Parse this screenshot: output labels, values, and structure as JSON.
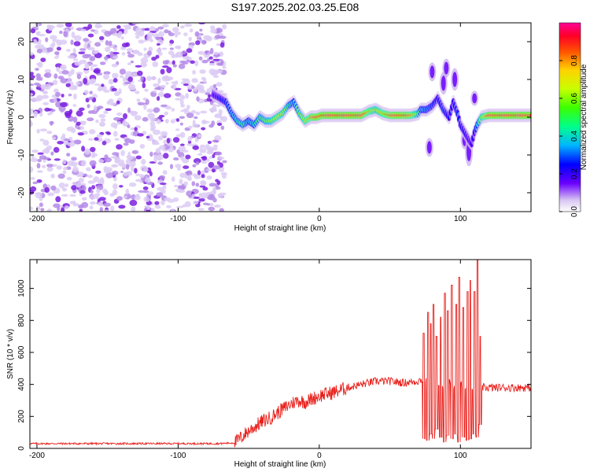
{
  "title": "S197.2025.202.03.25.E08",
  "chart_data": [
    {
      "type": "heatmap",
      "title": "",
      "xlabel": "Height of straight line (km)",
      "ylabel": "Frequency (Hz)",
      "xlim": [
        -205,
        150
      ],
      "ylim": [
        -25,
        25
      ],
      "xticks": [
        -200,
        -100,
        0,
        100
      ],
      "yticks": [
        -20,
        -10,
        0,
        10,
        20
      ],
      "noise_region_x": [
        -205,
        -67
      ],
      "ridge": {
        "x": [
          -75,
          -70,
          -66,
          -62,
          -58,
          -54,
          -50,
          -46,
          -42,
          -38,
          -34,
          -30,
          -26,
          -22,
          -18,
          -14,
          -10,
          -6,
          -2,
          2,
          10,
          20,
          30,
          35,
          40,
          45,
          50,
          55,
          60,
          65,
          70,
          72,
          76,
          80,
          84,
          88,
          92,
          95,
          98,
          100,
          103,
          106,
          108,
          110,
          112,
          115,
          120,
          130,
          140,
          150
        ],
        "y": [
          6,
          5,
          4,
          1,
          -1,
          -2,
          -1,
          -2,
          0,
          -1,
          -1,
          0,
          1,
          3,
          4,
          1,
          -1,
          0,
          0,
          0.5,
          0.5,
          0.5,
          0.5,
          1.5,
          2,
          1,
          0.5,
          0.5,
          0.5,
          0.5,
          1,
          2,
          2,
          3,
          5,
          2,
          0,
          4,
          1,
          -2,
          -4,
          -6,
          -7,
          -4,
          -2,
          0,
          0.5,
          0.5,
          0.5,
          0.5
        ],
        "amp": [
          0.25,
          0.3,
          0.35,
          0.45,
          0.5,
          0.55,
          0.45,
          0.5,
          0.55,
          0.6,
          0.65,
          0.75,
          0.7,
          0.55,
          0.45,
          0.6,
          0.75,
          0.85,
          0.95,
          0.95,
          0.97,
          0.97,
          0.95,
          0.8,
          0.7,
          0.8,
          0.9,
          0.95,
          0.95,
          0.85,
          0.6,
          0.45,
          0.4,
          0.35,
          0.3,
          0.35,
          0.3,
          0.3,
          0.35,
          0.3,
          0.3,
          0.25,
          0.25,
          0.3,
          0.45,
          0.7,
          0.95,
          0.97,
          0.97,
          0.97
        ]
      },
      "outlier_blobs": [
        {
          "x": 78,
          "y": -8,
          "h": 5
        },
        {
          "x": 80,
          "y": 12,
          "h": 5
        },
        {
          "x": 88,
          "y": 9,
          "h": 6
        },
        {
          "x": 90,
          "y": 13,
          "h": 5
        },
        {
          "x": 96,
          "y": 10,
          "h": 6
        },
        {
          "x": 103,
          "y": -6,
          "h": 5
        },
        {
          "x": 106,
          "y": -9,
          "h": 8
        },
        {
          "x": 110,
          "y": 5,
          "h": 4
        }
      ],
      "colorbar": {
        "label": "Normalized spectral amplitude",
        "range": [
          0,
          1
        ],
        "ticks": [
          0.0,
          0.2,
          0.4,
          0.6,
          0.8
        ]
      }
    },
    {
      "type": "line",
      "title": "",
      "xlabel": "Height of straight line (km)",
      "ylabel": "SNR (10 * v/v)",
      "xlim": [
        -205,
        150
      ],
      "ylim": [
        0,
        1180
      ],
      "xticks": [
        -200,
        -100,
        0,
        100
      ],
      "yticks": [
        0,
        200,
        400,
        600,
        800,
        1000
      ],
      "color": "#e8201c",
      "series": [
        {
          "name": "",
          "x": [
            -205,
            -180,
            -150,
            -120,
            -90,
            -70,
            -60,
            -55,
            -50,
            -45,
            -40,
            -35,
            -30,
            -25,
            -20,
            -15,
            -10,
            -5,
            0,
            10,
            20,
            30,
            40,
            50,
            60,
            70,
            72,
            75,
            78,
            80,
            82,
            85,
            88,
            90,
            92,
            95,
            98,
            100,
            102,
            105,
            108,
            110,
            112,
            114,
            118,
            125,
            135,
            145,
            150
          ],
          "y": [
            30,
            30,
            30,
            30,
            30,
            30,
            35,
            70,
            110,
            140,
            170,
            190,
            220,
            250,
            280,
            300,
            290,
            310,
            330,
            350,
            380,
            400,
            420,
            420,
            410,
            420,
            430,
            420,
            400,
            380,
            400,
            380,
            390,
            360,
            420,
            380,
            350,
            400,
            380,
            360,
            380,
            350,
            380,
            380,
            380,
            380,
            380,
            380,
            380
          ],
          "spikes": [
            {
              "x": 74,
              "hi": 720,
              "lo": 60
            },
            {
              "x": 77,
              "hi": 850,
              "lo": 50
            },
            {
              "x": 79,
              "hi": 780,
              "lo": 90
            },
            {
              "x": 81,
              "hi": 900,
              "lo": 60
            },
            {
              "x": 83,
              "hi": 700,
              "lo": 120
            },
            {
              "x": 86,
              "hi": 820,
              "lo": 70
            },
            {
              "x": 89,
              "hi": 970,
              "lo": 40
            },
            {
              "x": 91,
              "hi": 860,
              "lo": 80
            },
            {
              "x": 94,
              "hi": 1020,
              "lo": 60
            },
            {
              "x": 97,
              "hi": 900,
              "lo": 90
            },
            {
              "x": 99,
              "hi": 1070,
              "lo": 40
            },
            {
              "x": 102,
              "hi": 880,
              "lo": 70
            },
            {
              "x": 105,
              "hi": 980,
              "lo": 50
            },
            {
              "x": 107,
              "hi": 1050,
              "lo": 60
            },
            {
              "x": 110,
              "hi": 980,
              "lo": 90
            },
            {
              "x": 112,
              "hi": 1180,
              "lo": 70
            },
            {
              "x": 114,
              "hi": 700,
              "lo": 150
            }
          ]
        }
      ]
    }
  ]
}
